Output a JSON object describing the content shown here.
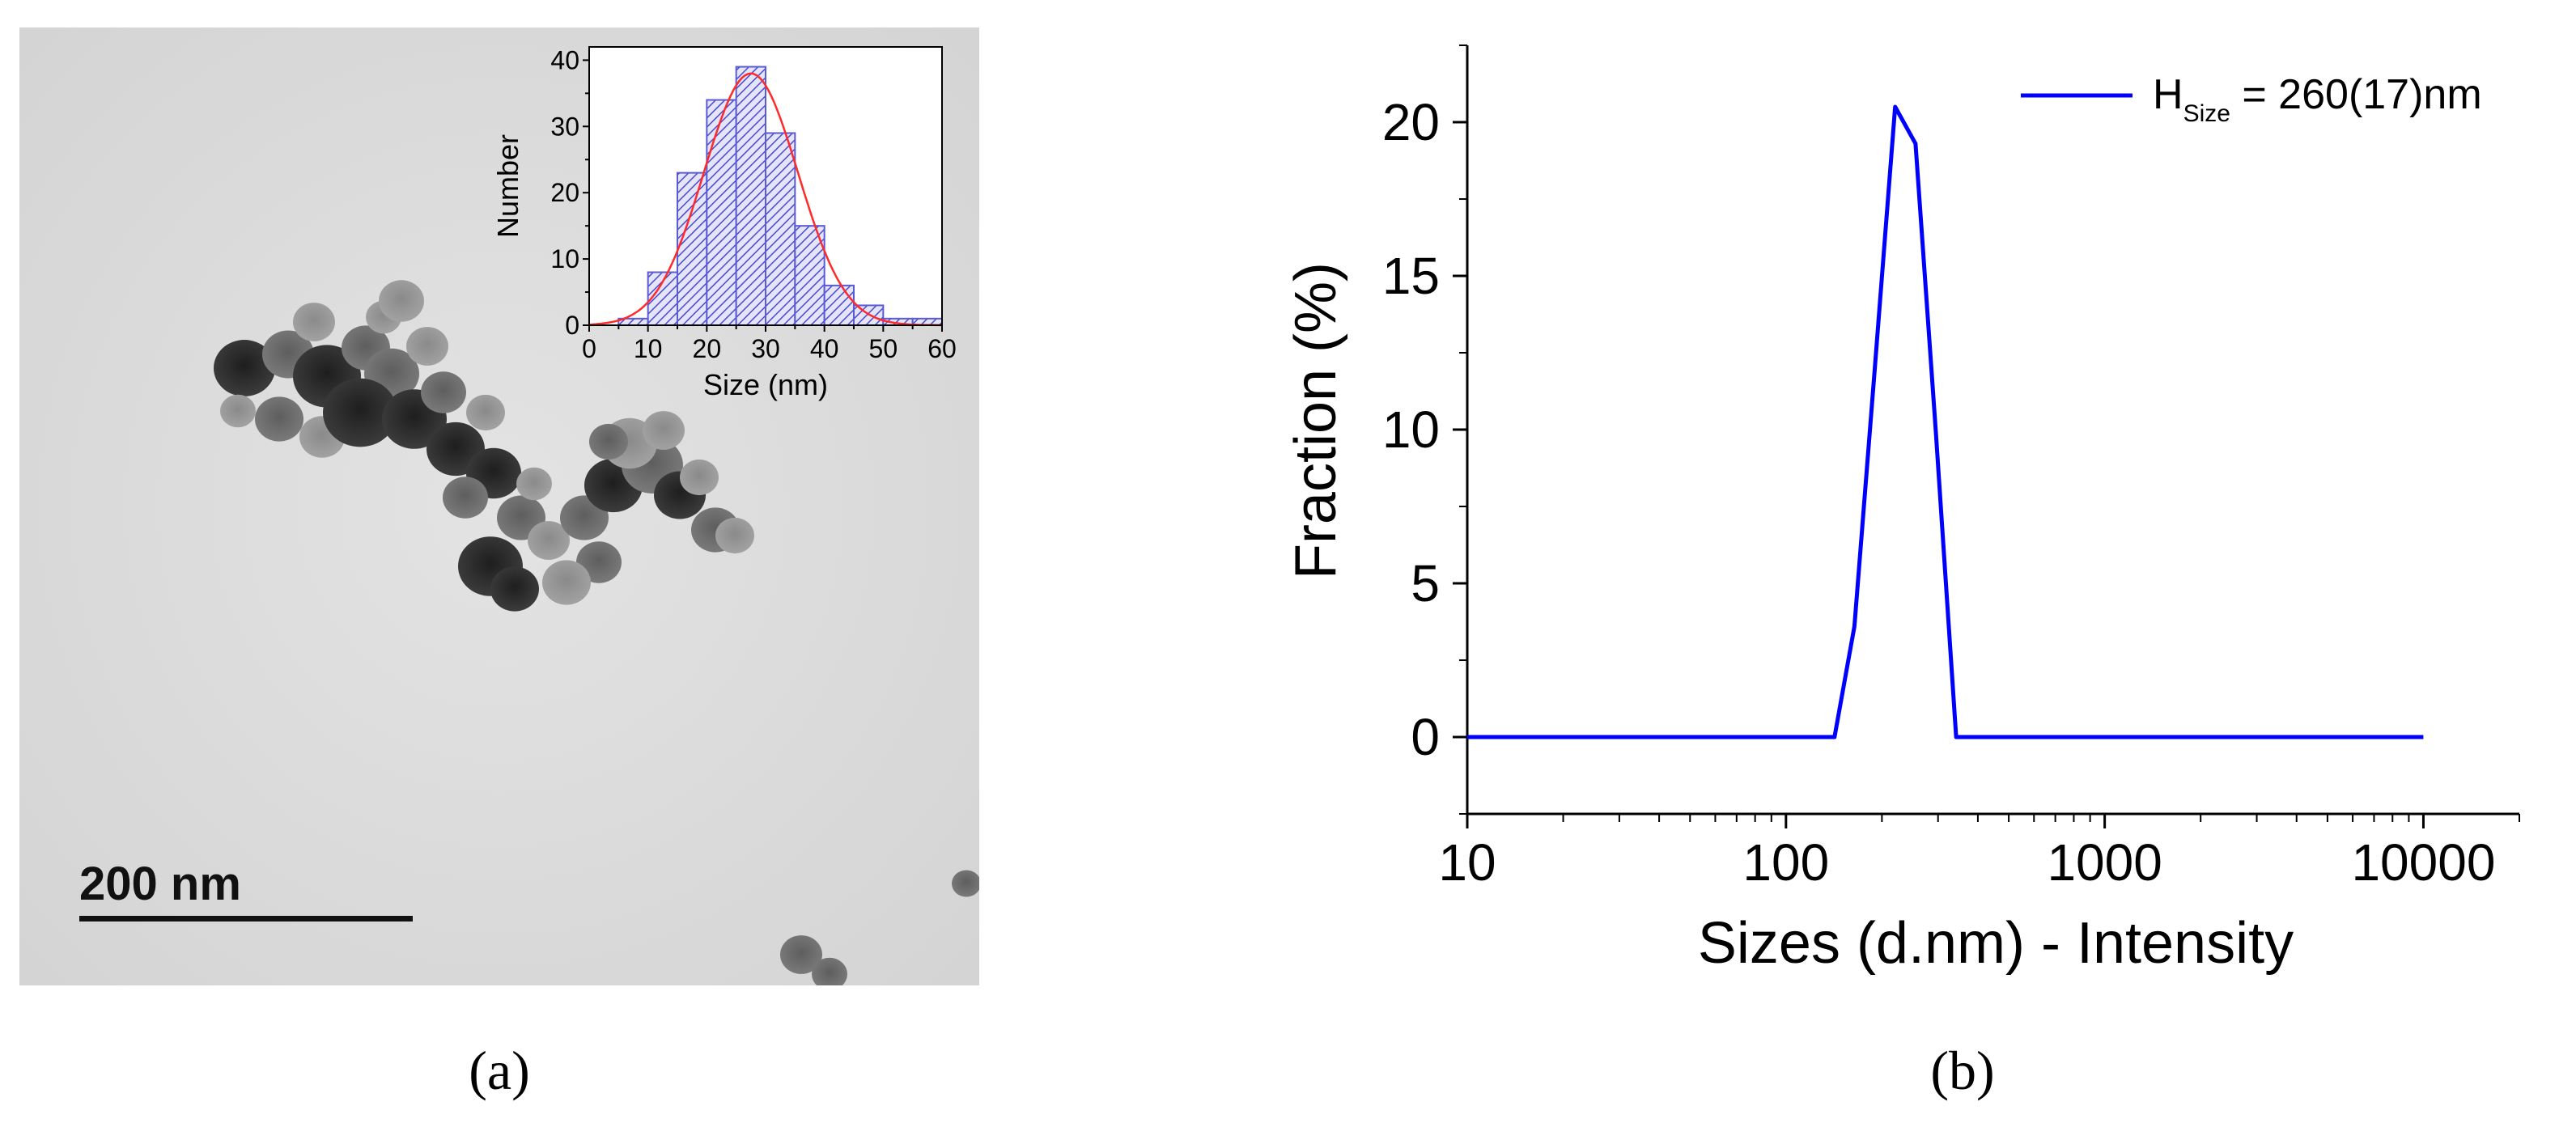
{
  "figure": {
    "panel_a_label": "(a)",
    "panel_b_label": "(b)",
    "scale_bar_label": "200 nm"
  },
  "colors": {
    "hist_bar": "#5b5bd6",
    "fit_curve": "#ff2a2a",
    "dls_line": "#0000ff",
    "axis": "#000000"
  },
  "chart_data": [
    {
      "type": "bar",
      "id": "inset-histogram",
      "title": "",
      "xlabel": "Size (nm)",
      "ylabel": "Number",
      "xlim": [
        0,
        60
      ],
      "ylim": [
        0,
        42
      ],
      "xticks": [
        "0",
        "10",
        "20",
        "30",
        "40",
        "50",
        "60"
      ],
      "yticks": [
        "0",
        "10",
        "20",
        "30",
        "40"
      ],
      "bins": [
        {
          "from": 5,
          "to": 10,
          "count": 1
        },
        {
          "from": 10,
          "to": 15,
          "count": 8
        },
        {
          "from": 15,
          "to": 20,
          "count": 23
        },
        {
          "from": 20,
          "to": 25,
          "count": 34
        },
        {
          "from": 25,
          "to": 30,
          "count": 39
        },
        {
          "from": 30,
          "to": 35,
          "count": 29
        },
        {
          "from": 35,
          "to": 40,
          "count": 15
        },
        {
          "from": 40,
          "to": 45,
          "count": 6
        },
        {
          "from": 45,
          "to": 50,
          "count": 3
        },
        {
          "from": 50,
          "to": 55,
          "count": 1
        },
        {
          "from": 55,
          "to": 60,
          "count": 1
        }
      ],
      "fit": {
        "type": "gaussian",
        "center": 27.5,
        "sigma": 8.0,
        "peak": 38
      }
    },
    {
      "type": "line",
      "id": "dls-intensity",
      "title": "",
      "xlabel": "Sizes (d.nm) - Intensity",
      "ylabel": "Fraction (%)",
      "xscale": "log",
      "xlim": [
        10,
        20000
      ],
      "ylim": [
        -2.5,
        22.5
      ],
      "xticks": [
        "10",
        "100",
        "1000",
        "10000"
      ],
      "yticks": [
        "0",
        "5",
        "10",
        "15",
        "20"
      ],
      "series": [
        {
          "name": "H",
          "name_sub": "Size",
          "name_suffix": " = 260(17)nm",
          "x": [
            10,
            142,
            164,
            190,
            220,
            255,
            295,
            342,
            10000
          ],
          "y": [
            0,
            0,
            3.6,
            12.0,
            20.5,
            19.3,
            10.0,
            0,
            0
          ]
        }
      ],
      "legend_position": "top-right"
    }
  ]
}
